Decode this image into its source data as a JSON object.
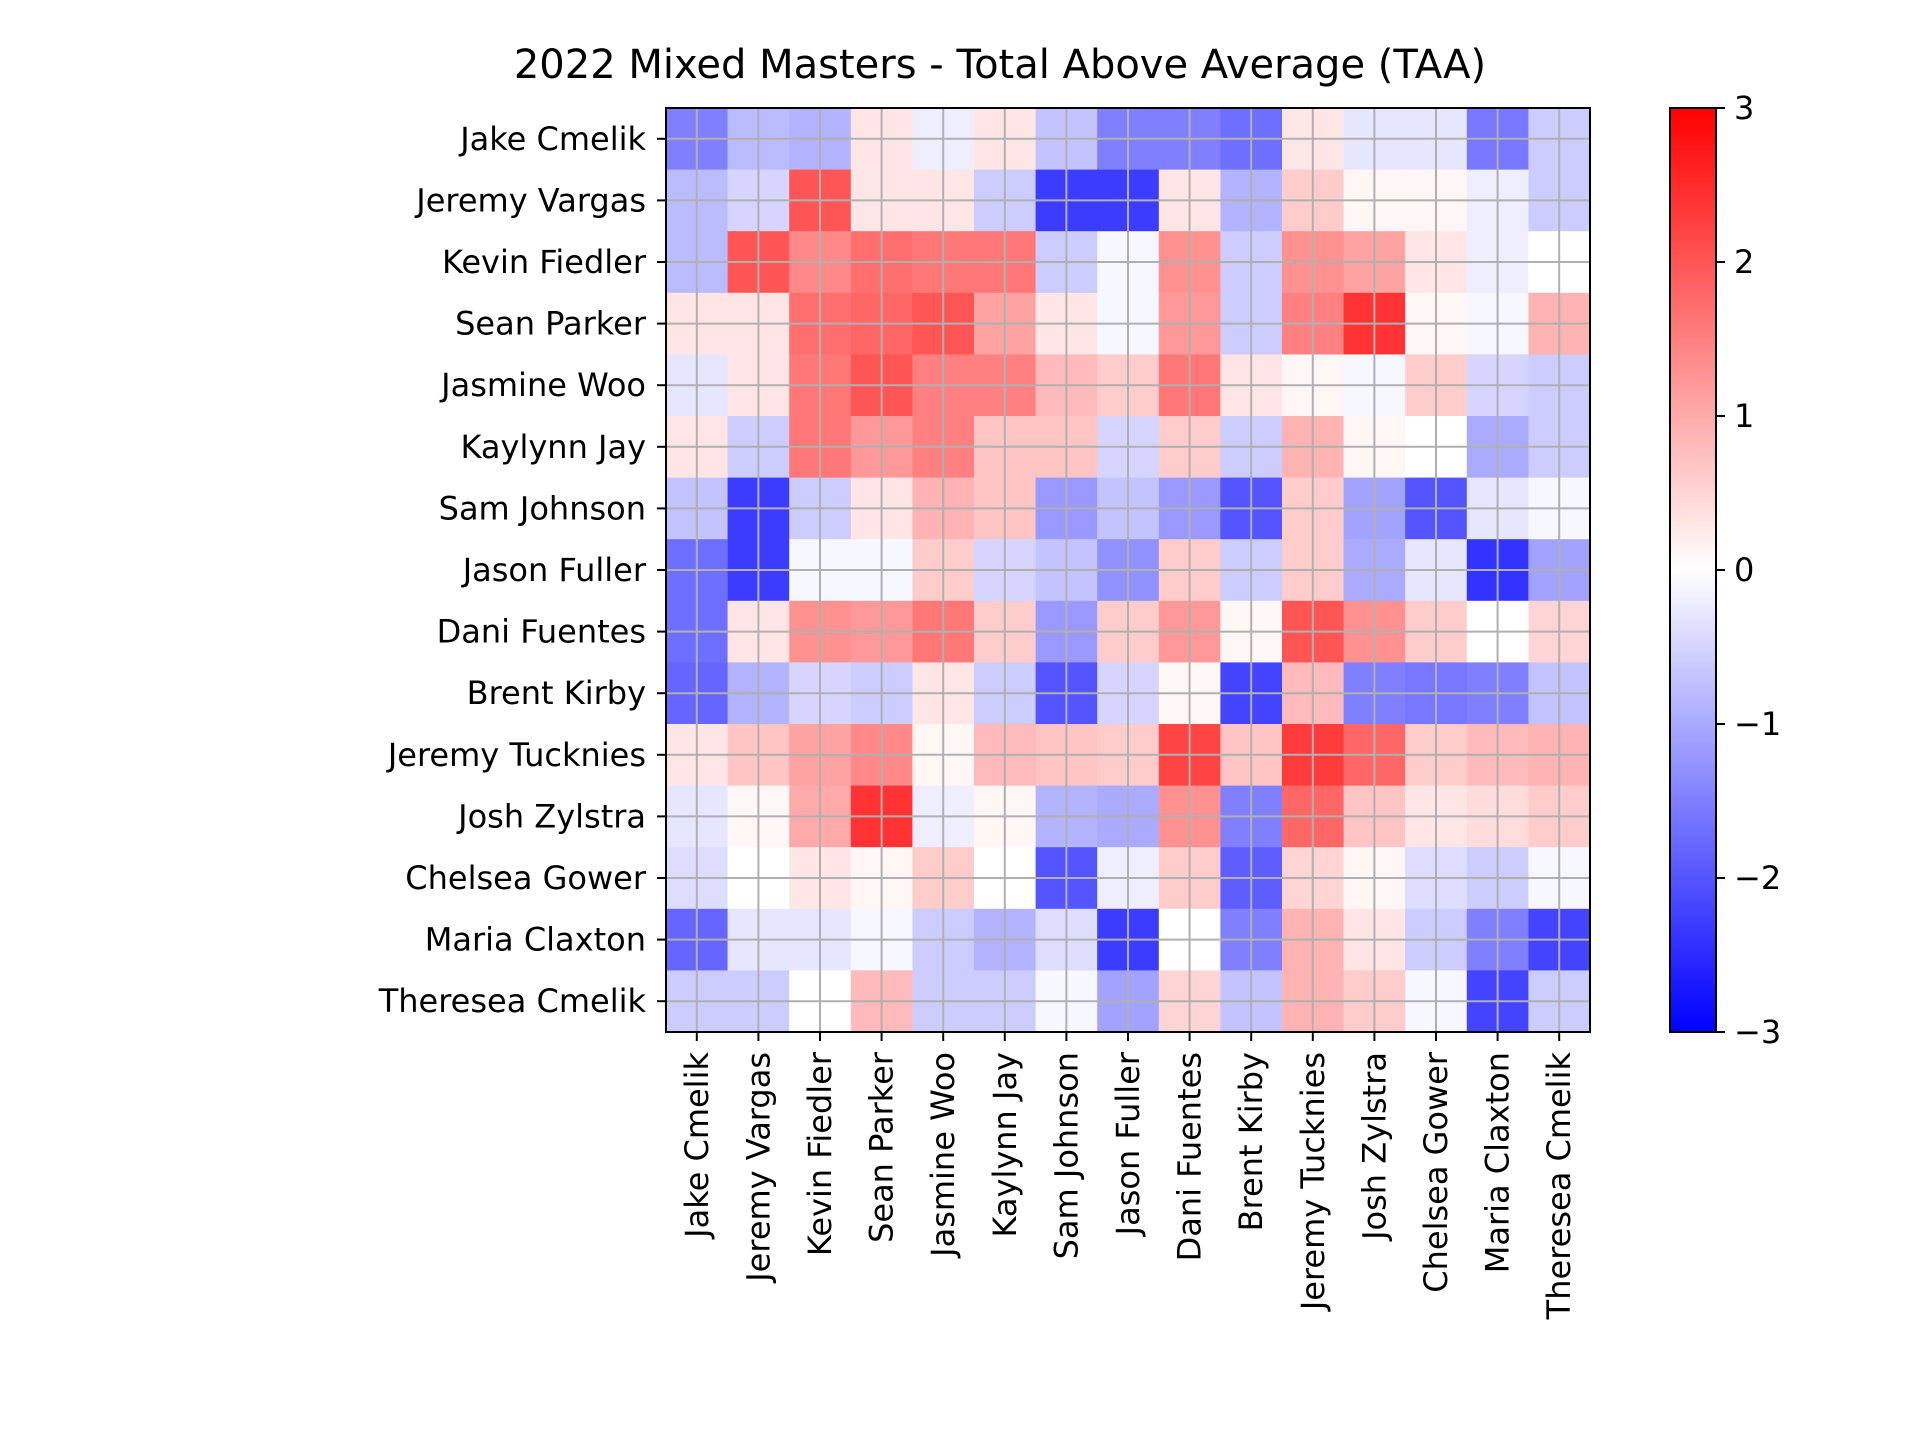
{
  "chart_data": {
    "type": "heatmap",
    "title": "2022 Mixed Masters - Total Above Average (TAA)",
    "xlabel": "",
    "ylabel": "",
    "row_labels": [
      "Jake Cmelik",
      "Jeremy Vargas",
      "Kevin Fiedler",
      "Sean Parker",
      "Jasmine Woo",
      "Kaylynn Jay",
      "Sam Johnson",
      "Jason Fuller",
      "Dani Fuentes",
      "Brent Kirby",
      "Jeremy Tucknies",
      "Josh Zylstra",
      "Chelsea Gower",
      "Maria Claxton",
      "Theresea Cmelik"
    ],
    "col_labels": [
      "Jake Cmelik",
      "Jeremy Vargas",
      "Kevin Fiedler",
      "Sean Parker",
      "Jasmine Woo",
      "Kaylynn Jay",
      "Sam Johnson",
      "Jason Fuller",
      "Dani Fuentes",
      "Brent Kirby",
      "Jeremy Tucknies",
      "Josh Zylstra",
      "Chelsea Gower",
      "Maria Claxton",
      "Theresea Cmelik"
    ],
    "values": [
      [
        -1.5,
        -0.8,
        -0.9,
        0.3,
        -0.2,
        0.3,
        -0.7,
        -1.5,
        -1.5,
        -1.7,
        0.3,
        -0.3,
        -0.3,
        -1.6,
        -0.6
      ],
      [
        -0.8,
        -0.5,
        2.0,
        0.3,
        0.3,
        -0.6,
        -2.3,
        -2.3,
        0.3,
        -0.9,
        0.6,
        0.1,
        0.1,
        -0.2,
        -0.6
      ],
      [
        -0.8,
        2.0,
        1.4,
        1.7,
        1.6,
        1.6,
        -0.6,
        -0.1,
        1.3,
        -0.6,
        1.3,
        1.1,
        0.3,
        -0.2,
        0.0
      ],
      [
        0.3,
        0.3,
        1.7,
        1.8,
        2.0,
        1.1,
        0.3,
        -0.1,
        1.2,
        -0.6,
        1.5,
        2.4,
        0.1,
        -0.1,
        0.9
      ],
      [
        -0.3,
        0.3,
        1.6,
        2.0,
        1.5,
        1.5,
        0.8,
        0.6,
        1.6,
        0.3,
        0.1,
        -0.1,
        0.6,
        -0.5,
        -0.6
      ],
      [
        0.3,
        -0.6,
        1.6,
        1.2,
        1.5,
        0.7,
        0.7,
        -0.5,
        0.6,
        -0.6,
        0.9,
        0.1,
        0.0,
        -1.0,
        -0.6
      ],
      [
        -0.7,
        -2.3,
        -0.6,
        0.3,
        0.9,
        0.7,
        -1.2,
        -0.7,
        -1.2,
        -2.0,
        0.6,
        -1.1,
        -2.0,
        -0.3,
        -0.1
      ],
      [
        -1.7,
        -2.3,
        -0.1,
        -0.1,
        0.6,
        -0.5,
        -0.7,
        -1.3,
        0.6,
        -0.6,
        0.6,
        -1.0,
        -0.3,
        -2.4,
        -1.1
      ],
      [
        -1.7,
        0.3,
        1.3,
        1.2,
        1.6,
        0.6,
        -1.2,
        0.6,
        1.2,
        0.1,
        2.0,
        1.3,
        0.6,
        0.0,
        0.5
      ],
      [
        -1.8,
        -0.9,
        -0.5,
        -0.6,
        0.3,
        -0.6,
        -2.0,
        -0.5,
        0.1,
        -2.2,
        0.8,
        -1.5,
        -1.6,
        -1.5,
        -0.7
      ],
      [
        0.3,
        0.7,
        1.1,
        1.4,
        0.1,
        0.8,
        0.7,
        0.6,
        2.2,
        0.7,
        2.3,
        1.8,
        0.6,
        0.8,
        0.9
      ],
      [
        -0.3,
        0.1,
        1.0,
        2.4,
        -0.2,
        0.1,
        -0.9,
        -1.0,
        1.3,
        -1.5,
        1.8,
        0.7,
        0.3,
        0.4,
        0.6
      ],
      [
        -0.4,
        0.0,
        0.3,
        0.1,
        0.6,
        0.0,
        -2.0,
        -0.2,
        0.6,
        -1.9,
        0.5,
        0.1,
        -0.4,
        -0.6,
        -0.1
      ],
      [
        -1.8,
        -0.3,
        -0.3,
        -0.1,
        -0.6,
        -0.9,
        -0.4,
        -2.3,
        0.0,
        -1.5,
        0.9,
        0.3,
        -0.6,
        -1.5,
        -2.2
      ],
      [
        -0.6,
        -0.6,
        0.0,
        0.8,
        -0.6,
        -0.6,
        -0.1,
        -1.1,
        0.5,
        -0.7,
        0.9,
        0.6,
        -0.1,
        -2.2,
        -0.6
      ]
    ],
    "colorscale": {
      "name": "bwr",
      "min": -3,
      "max": 3,
      "low_color": "#0000ff",
      "mid_color": "#ffffff",
      "high_color": "#ff0000",
      "ticks": [
        "3",
        "2",
        "1",
        "0",
        "−1",
        "−2",
        "−3"
      ]
    },
    "grid": true,
    "grid_color": "#b0b0b0"
  }
}
